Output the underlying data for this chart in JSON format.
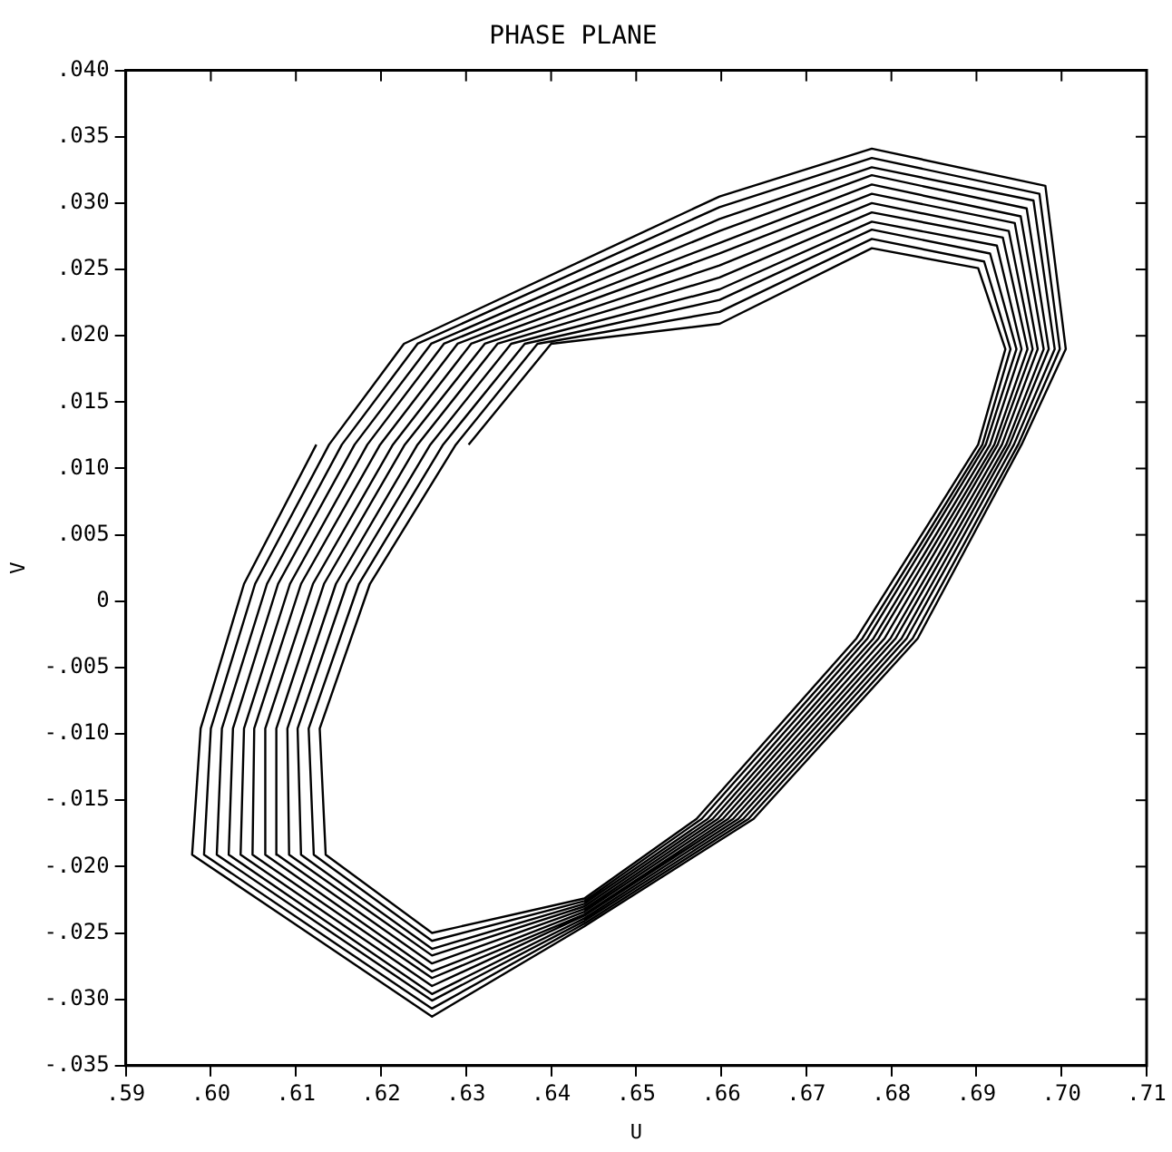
{
  "chart_data": {
    "type": "line",
    "title": "PHASE PLANE",
    "xlabel": "U",
    "ylabel": "V",
    "xlim": [
      0.59,
      0.71
    ],
    "xticks": [
      {
        "value": 0.59,
        "label": ".59"
      },
      {
        "value": 0.6,
        "label": ".60"
      },
      {
        "value": 0.61,
        "label": ".61"
      },
      {
        "value": 0.62,
        "label": ".62"
      },
      {
        "value": 0.63,
        "label": ".63"
      },
      {
        "value": 0.64,
        "label": ".64"
      },
      {
        "value": 0.65,
        "label": ".65"
      },
      {
        "value": 0.66,
        "label": ".66"
      },
      {
        "value": 0.67,
        "label": ".67"
      },
      {
        "value": 0.68,
        "label": ".68"
      },
      {
        "value": 0.69,
        "label": ".69"
      },
      {
        "value": 0.7,
        "label": ".70"
      },
      {
        "value": 0.71,
        "label": ".71"
      }
    ],
    "ylim": [
      -0.035,
      0.04
    ],
    "yticks": [
      {
        "value": -0.035,
        "label": "-.035"
      },
      {
        "value": -0.03,
        "label": "-.030"
      },
      {
        "value": -0.025,
        "label": "-.025"
      },
      {
        "value": -0.02,
        "label": "-.020"
      },
      {
        "value": -0.015,
        "label": "-.015"
      },
      {
        "value": -0.01,
        "label": "-.010"
      },
      {
        "value": -0.005,
        "label": "-.005"
      },
      0,
      {
        "value": 0.005,
        "label": ".005"
      },
      {
        "value": 0.01,
        "label": ".010"
      },
      {
        "value": 0.015,
        "label": ".015"
      },
      {
        "value": 0.02,
        "label": ".020"
      },
      {
        "value": 0.025,
        "label": ".025"
      },
      {
        "value": 0.03,
        "label": ".030"
      },
      {
        "value": 0.035,
        "label": ".035"
      },
      {
        "value": 0.04,
        "label": ".040"
      }
    ],
    "grid": false,
    "legend": false,
    "marker": "none",
    "line_style": "solid",
    "series": [
      {
        "color": "#000000",
        "x": [
          0.6303,
          0.64,
          0.6598,
          0.6777,
          0.6902,
          0.6934,
          0.6902,
          0.6759,
          0.6571,
          0.6439,
          0.626,
          0.6135,
          0.6128,
          0.6187,
          0.6288,
          0.6384,
          0.6598,
          0.6777,
          0.6909,
          0.694,
          0.6907,
          0.6766,
          0.6577,
          0.6439,
          0.626,
          0.6121,
          0.6115,
          0.6174,
          0.6273,
          0.6369,
          0.6598,
          0.6777,
          0.6916,
          0.6947,
          0.6911,
          0.6772,
          0.6584,
          0.6439,
          0.626,
          0.6106,
          0.6102,
          0.616,
          0.6258,
          0.6353,
          0.6598,
          0.6777,
          0.6924,
          0.6953,
          0.6916,
          0.6779,
          0.659,
          0.6439,
          0.626,
          0.6092,
          0.609,
          0.6147,
          0.6243,
          0.6337,
          0.6598,
          0.6777,
          0.6931,
          0.696,
          0.6921,
          0.6785,
          0.6596,
          0.6439,
          0.626,
          0.6078,
          0.6077,
          0.6133,
          0.6228,
          0.6322,
          0.6598,
          0.6777,
          0.6938,
          0.6966,
          0.6925,
          0.6792,
          0.6602,
          0.6439,
          0.626,
          0.6064,
          0.6064,
          0.612,
          0.6214,
          0.6306,
          0.6598,
          0.6777,
          0.6945,
          0.6972,
          0.693,
          0.6799,
          0.6608,
          0.6439,
          0.626,
          0.6049,
          0.6051,
          0.6106,
          0.6199,
          0.629,
          0.6598,
          0.6777,
          0.6952,
          0.6979,
          0.6935,
          0.6805,
          0.6614,
          0.6439,
          0.626,
          0.6035,
          0.6039,
          0.6093,
          0.6184,
          0.6274,
          0.6598,
          0.6777,
          0.6959,
          0.6985,
          0.6939,
          0.6812,
          0.662,
          0.6439,
          0.626,
          0.6021,
          0.6026,
          0.6079,
          0.6169,
          0.6259,
          0.6598,
          0.6777,
          0.6967,
          0.6992,
          0.6944,
          0.6818,
          0.6626,
          0.6439,
          0.626,
          0.6007,
          0.6013,
          0.6066,
          0.6154,
          0.6243,
          0.6598,
          0.6777,
          0.6974,
          0.6998,
          0.6949,
          0.6825,
          0.6632,
          0.6439,
          0.626,
          0.5992,
          0.6,
          0.6052,
          0.6139,
          0.6227,
          0.6598,
          0.6777,
          0.6981,
          0.7005,
          0.6953,
          0.6831,
          0.6638,
          0.6439,
          0.626,
          0.5978,
          0.5988,
          0.6039,
          0.6124
        ],
        "values": [
          0.0118,
          0.0194,
          0.0209,
          0.0266,
          0.0251,
          0.019,
          0.0118,
          -0.0028,
          -0.0164,
          -0.0224,
          -0.025,
          -0.0191,
          -0.0096,
          0.0013,
          0.0118,
          0.0194,
          0.0218,
          0.0273,
          0.0256,
          0.019,
          0.0118,
          -0.0028,
          -0.0164,
          -0.0226,
          -0.0256,
          -0.0191,
          -0.0096,
          0.0013,
          0.0118,
          0.0194,
          0.0227,
          0.028,
          0.0262,
          0.019,
          0.0118,
          -0.0028,
          -0.0164,
          -0.0228,
          -0.0262,
          -0.0191,
          -0.0096,
          0.0013,
          0.0118,
          0.0194,
          0.0235,
          0.0286,
          0.0268,
          0.019,
          0.0118,
          -0.0028,
          -0.0164,
          -0.023,
          -0.0267,
          -0.0191,
          -0.0096,
          0.0013,
          0.0118,
          0.0194,
          0.0244,
          0.0293,
          0.0274,
          0.019,
          0.0118,
          -0.0028,
          -0.0164,
          -0.0232,
          -0.0273,
          -0.0191,
          -0.0096,
          0.0013,
          0.0118,
          0.0194,
          0.0253,
          0.03,
          0.0279,
          0.019,
          0.0118,
          -0.0028,
          -0.0164,
          -0.0234,
          -0.0279,
          -0.0191,
          -0.0096,
          0.0013,
          0.0118,
          0.0194,
          0.0262,
          0.0307,
          0.0285,
          0.019,
          0.0118,
          -0.0028,
          -0.0164,
          -0.0236,
          -0.0284,
          -0.0191,
          -0.0096,
          0.0013,
          0.0118,
          0.0194,
          0.027,
          0.0314,
          0.029,
          0.019,
          0.0118,
          -0.0028,
          -0.0164,
          -0.0237,
          -0.029,
          -0.0191,
          -0.0096,
          0.0013,
          0.0118,
          0.0194,
          0.0279,
          0.0321,
          0.0296,
          0.019,
          0.0118,
          -0.0028,
          -0.0164,
          -0.0239,
          -0.0296,
          -0.0191,
          -0.0096,
          0.0013,
          0.0118,
          0.0194,
          0.0288,
          0.0327,
          0.0302,
          0.019,
          0.0118,
          -0.0028,
          -0.0164,
          -0.0241,
          -0.0301,
          -0.0191,
          -0.0096,
          0.0013,
          0.0118,
          0.0194,
          0.0297,
          0.0334,
          0.0307,
          0.019,
          0.0118,
          -0.0028,
          -0.0164,
          -0.0243,
          -0.0307,
          -0.0191,
          -0.0096,
          0.0013,
          0.0118,
          0.0194,
          0.0305,
          0.0341,
          0.0313,
          0.019,
          0.0118,
          -0.0028,
          -0.0164,
          -0.0245,
          -0.0313,
          -0.0191,
          -0.0096,
          0.0013,
          0.0118
        ]
      }
    ]
  }
}
